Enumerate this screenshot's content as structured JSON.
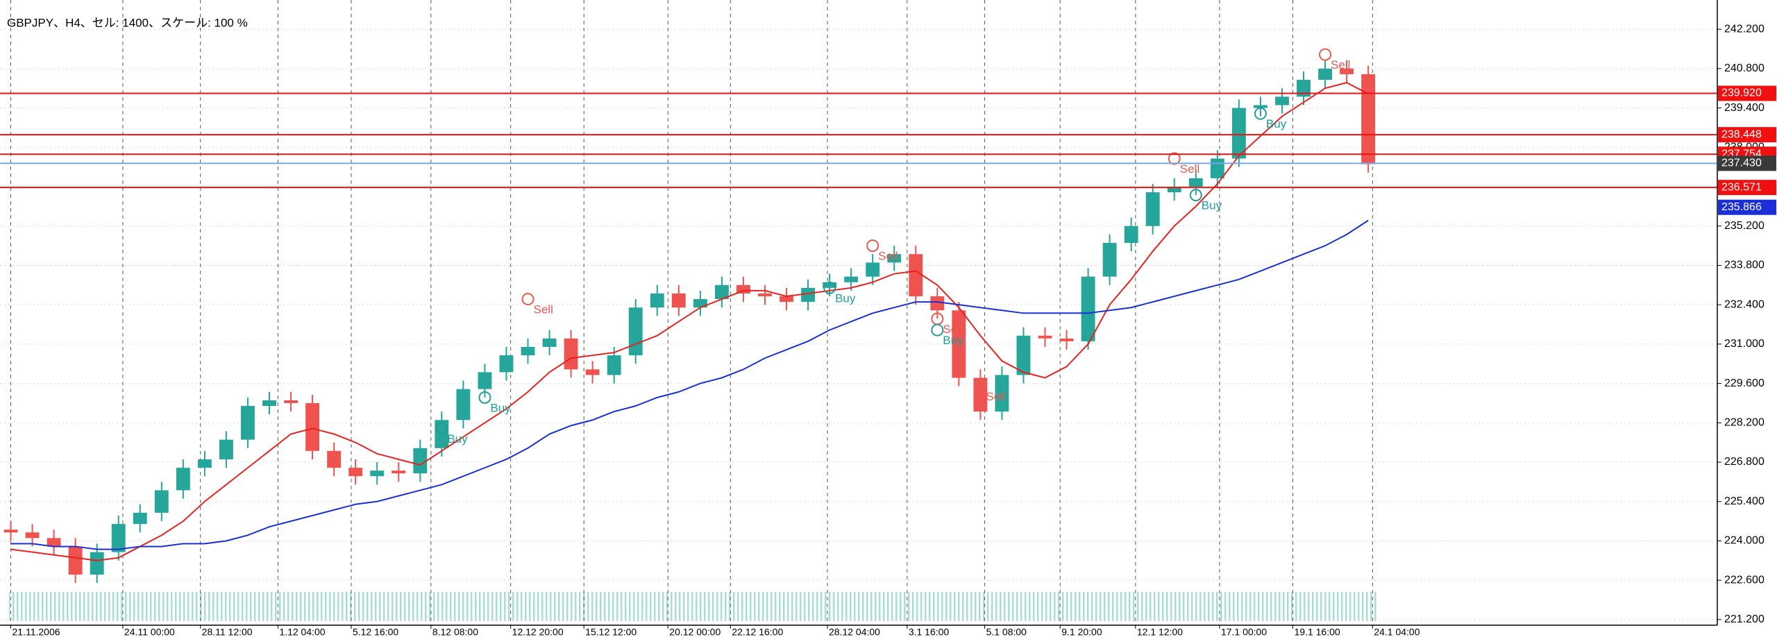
{
  "chart_data": {
    "type": "candlestick",
    "title": "GBPJPY、H4、セル: 1400、スケール: 100 %",
    "up_color": "#26a69a",
    "down_color": "#ef5350",
    "xlim": [
      -0.5,
      79.2
    ],
    "ylim": [
      221.0,
      243.24
    ],
    "open": [
      224.4,
      224.3,
      224.1,
      223.8,
      222.8,
      223.6,
      224.6,
      225.0,
      225.8,
      226.6,
      226.9,
      227.6,
      228.8,
      229.0,
      228.9,
      227.2,
      226.6,
      226.3,
      226.5,
      226.4,
      227.3,
      228.3,
      229.4,
      230.0,
      230.6,
      230.9,
      231.2,
      230.1,
      229.9,
      230.6,
      232.3,
      232.8,
      232.3,
      232.6,
      233.1,
      232.8,
      232.7,
      232.5,
      233.0,
      233.2,
      233.4,
      233.9,
      234.2,
      232.7,
      232.2,
      229.8,
      228.6,
      229.9,
      231.3,
      231.2,
      231.1,
      233.4,
      234.6,
      235.2,
      236.4,
      236.6,
      236.9,
      237.6,
      239.4,
      239.5,
      239.8,
      240.4,
      240.8,
      240.6
    ],
    "high": [
      224.7,
      224.6,
      224.4,
      224.1,
      223.9,
      224.9,
      225.3,
      226.1,
      226.9,
      227.2,
      227.9,
      229.1,
      229.3,
      229.3,
      229.2,
      227.5,
      226.9,
      226.8,
      226.8,
      227.6,
      228.6,
      229.7,
      230.3,
      230.9,
      231.2,
      231.5,
      231.5,
      230.4,
      230.9,
      232.6,
      233.1,
      233.1,
      232.9,
      233.4,
      233.4,
      233.1,
      233.0,
      233.3,
      233.5,
      233.7,
      234.2,
      234.5,
      234.5,
      233.0,
      232.5,
      230.1,
      230.2,
      231.6,
      231.6,
      231.5,
      233.7,
      234.9,
      235.5,
      236.7,
      236.9,
      237.2,
      237.9,
      239.7,
      239.8,
      240.1,
      240.7,
      241.1,
      241.1,
      240.9
    ],
    "low": [
      224.0,
      223.8,
      223.5,
      222.5,
      222.5,
      223.3,
      224.3,
      224.7,
      225.5,
      226.3,
      226.6,
      227.3,
      228.5,
      228.6,
      226.9,
      226.3,
      226.0,
      226.0,
      226.1,
      226.1,
      227.0,
      228.0,
      229.1,
      229.7,
      230.3,
      230.6,
      229.8,
      229.6,
      229.6,
      230.3,
      232.0,
      232.0,
      232.0,
      232.3,
      232.5,
      232.4,
      232.2,
      232.2,
      232.7,
      232.9,
      233.1,
      233.6,
      232.4,
      231.9,
      229.5,
      228.3,
      228.3,
      229.6,
      230.9,
      230.8,
      230.8,
      233.1,
      234.3,
      234.9,
      236.1,
      236.3,
      236.6,
      237.3,
      239.1,
      239.2,
      239.5,
      240.1,
      240.3,
      237.1
    ],
    "close": [
      224.3,
      224.1,
      223.8,
      222.8,
      223.6,
      224.6,
      225.0,
      225.8,
      226.6,
      226.9,
      227.6,
      228.8,
      229.0,
      228.9,
      227.2,
      226.6,
      226.3,
      226.5,
      226.4,
      227.3,
      228.3,
      229.4,
      230.0,
      230.6,
      230.9,
      231.2,
      230.1,
      229.9,
      230.6,
      232.3,
      232.8,
      232.3,
      232.6,
      233.1,
      232.8,
      232.7,
      232.5,
      233.0,
      233.2,
      233.4,
      233.9,
      234.2,
      232.7,
      232.2,
      229.8,
      228.6,
      229.9,
      231.3,
      231.2,
      231.1,
      233.4,
      234.6,
      235.2,
      236.4,
      236.6,
      236.9,
      237.6,
      239.4,
      239.5,
      239.8,
      240.4,
      240.8,
      240.6,
      237.4
    ],
    "series": [
      {
        "color": "#e8231f",
        "values": [
          223.7,
          223.6,
          223.5,
          223.4,
          223.3,
          223.4,
          223.8,
          224.2,
          224.7,
          225.4,
          226.0,
          226.6,
          227.2,
          227.8,
          228.0,
          227.8,
          227.5,
          227.1,
          226.9,
          226.7,
          227.2,
          227.7,
          228.2,
          228.7,
          229.3,
          230.0,
          230.5,
          230.6,
          230.7,
          231.0,
          231.3,
          231.8,
          232.3,
          232.6,
          232.9,
          232.9,
          232.7,
          232.8,
          232.9,
          233.0,
          233.2,
          233.5,
          233.6,
          233.1,
          232.3,
          231.3,
          230.4,
          230.0,
          229.8,
          230.2,
          231.0,
          232.4,
          233.3,
          234.3,
          235.2,
          235.9,
          236.7,
          237.7,
          238.4,
          239.1,
          239.6,
          240.1,
          240.3,
          239.9
        ]
      },
      {
        "color": "#1a2fd6",
        "values": [
          223.9,
          223.9,
          223.8,
          223.8,
          223.7,
          223.7,
          223.8,
          223.8,
          223.9,
          223.9,
          224.0,
          224.2,
          224.5,
          224.7,
          224.9,
          225.1,
          225.3,
          225.4,
          225.6,
          225.8,
          226.0,
          226.3,
          226.6,
          226.9,
          227.3,
          227.8,
          228.1,
          228.3,
          228.6,
          228.8,
          229.1,
          229.3,
          229.6,
          229.8,
          230.1,
          230.5,
          230.8,
          231.1,
          231.5,
          231.8,
          232.1,
          232.3,
          232.5,
          232.5,
          232.4,
          232.3,
          232.2,
          232.1,
          232.1,
          232.1,
          232.1,
          232.2,
          232.3,
          232.5,
          232.7,
          232.9,
          233.1,
          233.3,
          233.6,
          233.9,
          234.2,
          234.5,
          234.9,
          235.4
        ]
      }
    ],
    "grid": true,
    "yticks": [
      {
        "value": 242.2,
        "label": "242.200"
      },
      {
        "value": 240.8,
        "label": "240.800"
      },
      {
        "value": 239.4,
        "label": "239.400"
      },
      {
        "value": 238.0,
        "label": "238.000"
      },
      {
        "value": 236.6,
        "label": "236.600"
      },
      {
        "value": 235.2,
        "label": "235.200"
      },
      {
        "value": 233.8,
        "label": "233.800"
      },
      {
        "value": 232.4,
        "label": "232.400"
      },
      {
        "value": 231.0,
        "label": "231.000"
      },
      {
        "value": 229.6,
        "label": "229.600"
      },
      {
        "value": 228.2,
        "label": "228.200"
      },
      {
        "value": 226.8,
        "label": "226.800"
      },
      {
        "value": 225.4,
        "label": "225.400"
      },
      {
        "value": 224.0,
        "label": "224.000"
      },
      {
        "value": 222.6,
        "label": "222.600"
      },
      {
        "value": 221.2,
        "label": "221.200"
      }
    ],
    "xticks": [
      {
        "value": 0,
        "label": "21.11.2006"
      },
      {
        "value": 5.2,
        "label": "24.11 00:00"
      },
      {
        "value": 8.8,
        "label": "28.11 12:00"
      },
      {
        "value": 12.4,
        "label": "1.12 04:00"
      },
      {
        "value": 15.8,
        "label": "5.12 16:00"
      },
      {
        "value": 19.5,
        "label": "8.12 08:00"
      },
      {
        "value": 23.2,
        "label": "12.12 20:00"
      },
      {
        "value": 26.6,
        "label": "15.12 12:00"
      },
      {
        "value": 30.5,
        "label": "20.12 00:00"
      },
      {
        "value": 33.4,
        "label": "22.12 16:00"
      },
      {
        "value": 37.9,
        "label": "28.12 04:00"
      },
      {
        "value": 41.6,
        "label": "3.1 16:00"
      },
      {
        "value": 45.2,
        "label": "5.1 08:00"
      },
      {
        "value": 48.7,
        "label": "9.1 20:00"
      },
      {
        "value": 52.2,
        "label": "12.1 12:00"
      },
      {
        "value": 56.1,
        "label": "17.1 00:00"
      },
      {
        "value": 59.5,
        "label": "19.1 16:00"
      },
      {
        "value": 63.2,
        "label": "24.1 04:00"
      }
    ],
    "levels": [
      {
        "value": 239.92,
        "label": "239.920",
        "color": "#f01010",
        "line": true
      },
      {
        "value": 238.448,
        "label": "238.448",
        "color": "#f01010",
        "line": true
      },
      {
        "value": 237.754,
        "label": "237.754",
        "color": "#f01010",
        "line": true
      },
      {
        "value": 237.43,
        "label": "237.430",
        "color": "#3a3a3a",
        "line": true
      },
      {
        "value": 236.571,
        "label": "236.571",
        "color": "#f01010",
        "line": true
      },
      {
        "value": 235.866,
        "label": "235.866",
        "color": "#1a2fd6",
        "line": false
      }
    ],
    "signals": [
      {
        "label": "Buy",
        "index": 20,
        "price": 228.0
      },
      {
        "label": "Buy",
        "index": 22,
        "price": 229.1
      },
      {
        "label": "Sell",
        "index": 24,
        "price": 232.6
      },
      {
        "label": "Buy",
        "index": 38,
        "price": 233.0
      },
      {
        "label": "Sell",
        "index": 40,
        "price": 234.5
      },
      {
        "label": "Sell",
        "index": 43,
        "price": 231.9
      },
      {
        "label": "Buy",
        "index": 43,
        "price": 231.5
      },
      {
        "label": "Sell",
        "index": 45,
        "price": 229.5
      },
      {
        "label": "Buy",
        "index": 55,
        "price": 236.3
      },
      {
        "label": "Sell",
        "index": 54,
        "price": 237.6
      },
      {
        "label": "Buy",
        "index": 58,
        "price": 239.2
      },
      {
        "label": "Sell",
        "index": 61,
        "price": 241.3
      }
    ],
    "buy_color": "#1f9e96",
    "sell_color": "#e85a4f"
  }
}
